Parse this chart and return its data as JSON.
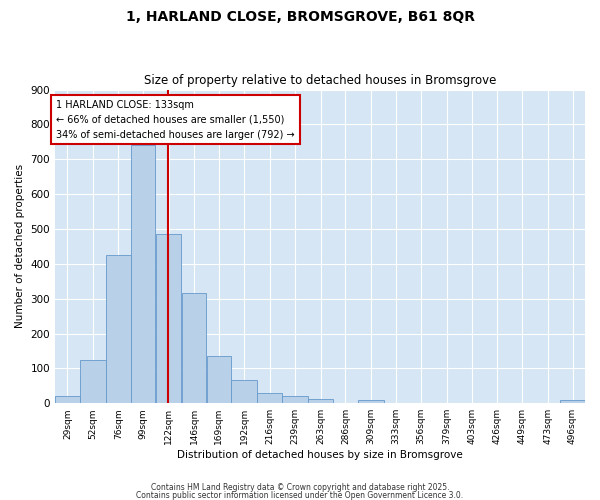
{
  "title": "1, HARLAND CLOSE, BROMSGROVE, B61 8QR",
  "subtitle": "Size of property relative to detached houses in Bromsgrove",
  "xlabel": "Distribution of detached houses by size in Bromsgrove",
  "ylabel": "Number of detached properties",
  "bar_labels": [
    "29sqm",
    "52sqm",
    "76sqm",
    "99sqm",
    "122sqm",
    "146sqm",
    "169sqm",
    "192sqm",
    "216sqm",
    "239sqm",
    "263sqm",
    "286sqm",
    "309sqm",
    "333sqm",
    "356sqm",
    "379sqm",
    "403sqm",
    "426sqm",
    "449sqm",
    "473sqm",
    "496sqm"
  ],
  "bar_left_edges": [
    29,
    52,
    76,
    99,
    122,
    146,
    169,
    192,
    216,
    239,
    263,
    286,
    309,
    333,
    356,
    379,
    403,
    426,
    449,
    473,
    496
  ],
  "bar_widths": [
    23,
    24,
    23,
    23,
    24,
    23,
    23,
    24,
    23,
    24,
    23,
    23,
    24,
    23,
    23,
    24,
    23,
    23,
    24,
    23,
    23
  ],
  "bar_heights": [
    20,
    125,
    425,
    740,
    485,
    315,
    135,
    67,
    30,
    20,
    12,
    0,
    8,
    0,
    0,
    0,
    0,
    0,
    0,
    0,
    8
  ],
  "bar_color": "#b8d0e8",
  "bar_edge_color": "#6699cc",
  "vline_x": 133,
  "vline_color": "#cc0000",
  "annotation_title": "1 HARLAND CLOSE: 133sqm",
  "annotation_line1": "← 66% of detached houses are smaller (1,550)",
  "annotation_line2": "34% of semi-detached houses are larger (792) →",
  "annotation_box_facecolor": "#ffffff",
  "annotation_box_edgecolor": "#cc0000",
  "ylim": [
    0,
    900
  ],
  "yticks": [
    0,
    100,
    200,
    300,
    400,
    500,
    600,
    700,
    800,
    900
  ],
  "background_color": "#d6e6f4",
  "grid_color": "#ffffff",
  "fig_facecolor": "#ffffff",
  "footer_line1": "Contains HM Land Registry data © Crown copyright and database right 2025.",
  "footer_line2": "Contains public sector information licensed under the Open Government Licence 3.0."
}
